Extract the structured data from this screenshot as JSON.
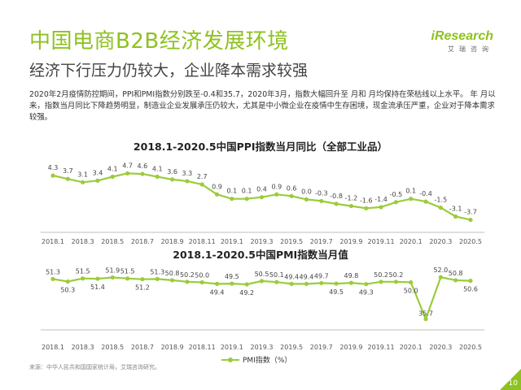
{
  "header": {
    "title": "中国电商B2B经济发展环境",
    "subtitle": "经济下行压力仍较大，企业降本需求较强",
    "logo_text": "iResearch",
    "logo_sub": "艾瑞咨询"
  },
  "paragraph": "2020年2月疫情防控期间，PPI和PMI指数分别跌至-0.4和35.7，2020年3月，指数大幅回升至 月和 月均保持在荣枯线以上水平。 年 月以来，指数当月同比下降趋势明显，制造业企业发展承压仍较大，尤其是中小微企业在疫情中生存困境，现金流承压严重，企业对于降本需求较强。",
  "colors": {
    "accent": "#8ec21f",
    "line": "#9ccb3b"
  },
  "source": "来源：中华人民共和国国家统计局，艾瑞咨询研究。",
  "page_number": "10",
  "chart_data": [
    {
      "type": "line",
      "title": "2018.1-2020.5中国PPI指数当月同比（全部工业品）",
      "x": [
        "2018.1",
        "2018.2",
        "2018.3",
        "2018.4",
        "2018.5",
        "2018.6",
        "2018.7",
        "2018.8",
        "2018.9",
        "2018.10",
        "2018.11",
        "2018.12",
        "2019.1",
        "2019.2",
        "2019.3",
        "2019.4",
        "2019.5",
        "2019.6",
        "2019.7",
        "2019.8",
        "2019.9",
        "2019.10",
        "2019.11",
        "2019.12",
        "2020.1",
        "2020.2",
        "2020.3",
        "2020.4",
        "2020.5"
      ],
      "x_tick_labels": [
        "2018.1",
        "2018.3",
        "2018.5",
        "2018.7",
        "2018.9",
        "2018.11",
        "2019.1",
        "2019.3",
        "2019.5",
        "2019.7",
        "2019.9",
        "2019.11",
        "2020.1",
        "2020.3",
        "2020.5"
      ],
      "values": [
        4.3,
        3.7,
        3.1,
        3.4,
        4.1,
        4.7,
        4.6,
        4.1,
        3.6,
        3.3,
        2.7,
        0.9,
        0.1,
        0.1,
        0.4,
        0.9,
        0.6,
        0.0,
        -0.3,
        -0.8,
        -1.2,
        -1.6,
        -1.4,
        -0.5,
        0.1,
        -0.4,
        -1.5,
        -3.1,
        -3.7
      ],
      "value_labels": [
        "4.3",
        "3.7",
        "3.1",
        "3.4",
        "4.1",
        "4.7",
        "4.6",
        "4.1",
        "3.6",
        "3.3",
        "2.7",
        "0.9",
        "0.1",
        "0.1",
        "0.4",
        "0.9",
        "0.6",
        "0.0",
        "-0.3",
        "-0.8",
        "-1.2",
        "-1.6",
        "-1.4",
        "-0.5",
        "0.1",
        "-0.4",
        "-1.5",
        "-3.1",
        "-3.7"
      ],
      "ylim": [
        -4.2,
        5.2
      ],
      "grid": false,
      "legend": "none"
    },
    {
      "type": "line",
      "title": "2018.1-2020.5中国PMI指数当月值",
      "x": [
        "2018.1",
        "2018.2",
        "2018.3",
        "2018.4",
        "2018.5",
        "2018.6",
        "2018.7",
        "2018.8",
        "2018.9",
        "2018.10",
        "2018.11",
        "2018.12",
        "2019.1",
        "2019.2",
        "2019.3",
        "2019.4",
        "2019.5",
        "2019.6",
        "2019.7",
        "2019.8",
        "2019.9",
        "2019.10",
        "2019.11",
        "2019.12",
        "2020.1",
        "2020.2",
        "2020.3",
        "2020.4",
        "2020.5"
      ],
      "x_tick_labels": [
        "2018.1",
        "2018.3",
        "2018.5",
        "2018.7",
        "2018.9",
        "2018.11",
        "2019.1",
        "2019.3",
        "2019.5",
        "2019.7",
        "2019.9",
        "2019.11",
        "2020.1",
        "2020.3",
        "2020.5"
      ],
      "series": [
        {
          "name": "PMI指数（%）",
          "values": [
            51.3,
            50.3,
            51.5,
            51.4,
            51.9,
            51.5,
            51.2,
            51.3,
            50.8,
            50.2,
            50.0,
            49.4,
            49.5,
            49.2,
            50.5,
            50.1,
            49.4,
            49.4,
            49.7,
            49.5,
            49.8,
            49.3,
            50.2,
            50.2,
            50.0,
            35.7,
            52.0,
            50.8,
            50.6
          ],
          "value_labels": [
            "51.3",
            "50.3",
            "51.5",
            "51.4",
            "51.9",
            "51.5",
            "51.2",
            "51.3",
            "50.8",
            "50.2",
            "50.0",
            "49.4",
            "49.5",
            "49.2",
            "50.5",
            "50.1",
            "49.4",
            "49.4",
            "49.7",
            "49.5",
            "49.8",
            "49.3",
            "50.2",
            "50.2",
            "50.0",
            "35.7",
            "52.0",
            "50.8",
            "50.6"
          ]
        }
      ],
      "ylim": [
        34,
        53
      ],
      "grid": false,
      "legend": "bottom"
    }
  ]
}
